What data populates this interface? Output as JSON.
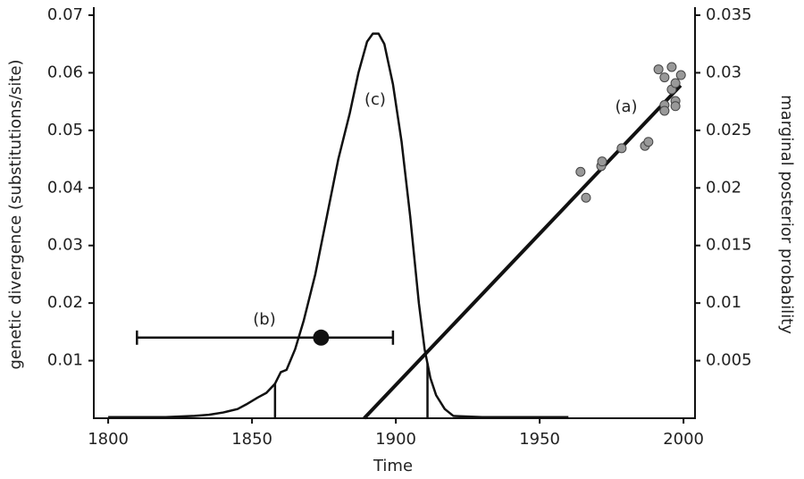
{
  "chart_data": {
    "type": "scatter",
    "x_label": "Time",
    "y_label": "genetic divergence (substitutions/site)",
    "y2_label": "marginal posterior probability",
    "xlim": [
      1795,
      2004
    ],
    "xticks": [
      1800,
      1850,
      1900,
      1950,
      2000
    ],
    "ylim": [
      0,
      0.07
    ],
    "yticks": [
      0.01,
      0.02,
      0.03,
      0.04,
      0.05,
      0.06,
      0.07
    ],
    "y2lim": [
      0,
      0.035
    ],
    "y2ticks": [
      0.005,
      0.01,
      0.015,
      0.02,
      0.025,
      0.03,
      0.035
    ],
    "series": [
      {
        "x": [
          1964.2,
          1966.1,
          1971.4,
          1971.7,
          1978.5,
          1986.6,
          1987.8,
          1991.3,
          1993.4,
          1993.4,
          1993.4,
          1995.9,
          1995.9,
          1997.2,
          1997.2,
          1997.2,
          1999.1
        ],
        "values": [
          0.0428,
          0.0383,
          0.0438,
          0.0446,
          0.0469,
          0.0473,
          0.048,
          0.0606,
          0.0592,
          0.0544,
          0.0534,
          0.061,
          0.0571,
          0.0582,
          0.0551,
          0.0542,
          0.0596
        ],
        "color": "#999999"
      }
    ],
    "regression": {
      "x": [
        1889,
        1999
      ],
      "values": [
        0,
        0.0578
      ],
      "color": "#111111",
      "annotation": "(a)"
    },
    "estimate": {
      "x": 1874,
      "low": 1810,
      "high": 1899,
      "value": 0.014,
      "color": "#111111",
      "annotation": "(b)"
    },
    "posterior": {
      "axis": "y2",
      "color": "#111111",
      "annotation": "(c)",
      "x": [
        1800,
        1820,
        1830,
        1835,
        1840,
        1845,
        1848,
        1852,
        1855,
        1858,
        1860,
        1862,
        1865,
        1868,
        1872,
        1876,
        1880,
        1884,
        1887,
        1890,
        1892,
        1894,
        1896,
        1899,
        1902,
        1905,
        1908,
        1910,
        1912,
        1914,
        1917,
        1920,
        1930,
        1960
      ],
      "values": [
        0.0001,
        0.0001,
        0.0002,
        0.0003,
        0.0005,
        0.0008,
        0.0012,
        0.0018,
        0.0022,
        0.003,
        0.004,
        0.0042,
        0.006,
        0.0085,
        0.0125,
        0.0175,
        0.0225,
        0.0265,
        0.03,
        0.0327,
        0.0334,
        0.0334,
        0.0325,
        0.029,
        0.024,
        0.0175,
        0.01,
        0.006,
        0.0035,
        0.002,
        0.0008,
        0.0002,
        0.0001,
        0.0001
      ],
      "hpd": [
        1858,
        1911
      ]
    }
  }
}
